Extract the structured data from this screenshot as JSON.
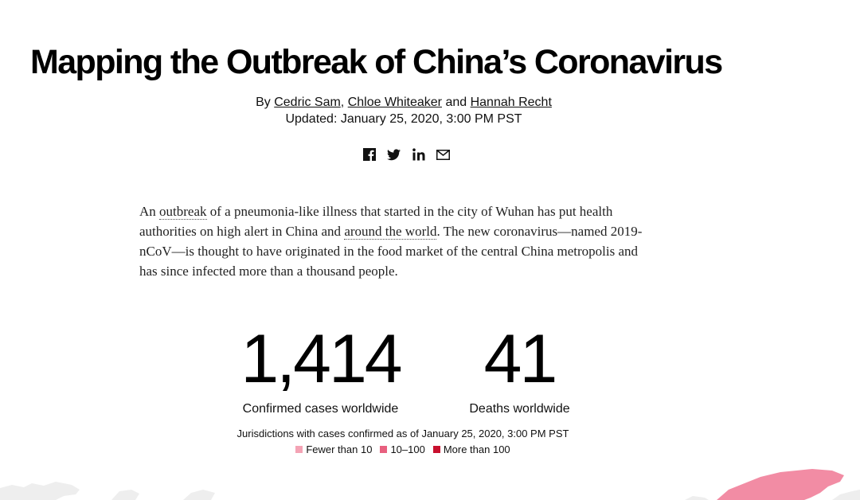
{
  "article": {
    "headline": "Mapping the Outbreak of China’s Coronavirus",
    "byline": {
      "prefix": "By",
      "authors": [
        "Cedric Sam",
        "Chloe Whiteaker",
        "Hannah Recht"
      ],
      "separator": ",",
      "conjunction": "and"
    },
    "updated": "Updated: January 25, 2020, 3:00 PM PST",
    "share_icons": [
      "facebook-icon",
      "twitter-icon",
      "linkedin-icon",
      "email-icon"
    ],
    "intro": {
      "t1": "An ",
      "link1": "outbreak",
      "t2": " of a pneumonia-like illness that started in the city of Wuhan has put health authorities on high alert in China and ",
      "link2": "around the world",
      "t3": ". The new coronavirus—named 2019-nCoV—is thought to have originated in the food market of the central China metropolis and has since infected more than a thousand people."
    }
  },
  "stats": {
    "cases": {
      "value": "1,414",
      "label": "Confirmed cases worldwide"
    },
    "deaths": {
      "value": "41",
      "label": "Deaths worldwide"
    }
  },
  "map": {
    "caption": "Jurisdictions with cases confirmed as of January 25, 2020, 3:00 PM PST",
    "legend": [
      {
        "label": "Fewer than 10",
        "color": "#f4a3b5"
      },
      {
        "label": "10–100",
        "color": "#e8607f"
      },
      {
        "label": "More than 100",
        "color": "#c8102e"
      }
    ],
    "land_color": "#eeeeee",
    "china_color": "#f28ca4"
  }
}
